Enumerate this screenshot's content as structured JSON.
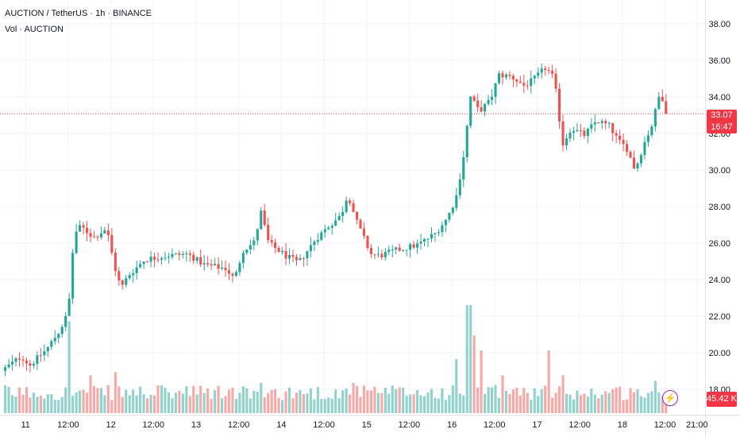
{
  "header": {
    "title": "AUCTION / TetherUS · 1h · BINANCE",
    "volume_label": "Vol · AUCTION"
  },
  "price_tag": {
    "price": "33.07",
    "countdown": "16:47"
  },
  "volume_tag": "45.42 K",
  "colors": {
    "up": "#26a69a",
    "down": "#ef5350",
    "vol_up": "#92d2cc",
    "vol_down": "#f7a9a7",
    "grid": "#f0f3fa"
  },
  "chart_data": {
    "type": "candlestick",
    "title": "AUCTION / TetherUS · 1h · BINANCE",
    "y_ticks": [
      "18.00",
      "20.00",
      "22.00",
      "24.00",
      "26.00",
      "28.00",
      "30.00",
      "32.00",
      "34.00",
      "36.00",
      "38.00"
    ],
    "ylim": [
      16.6,
      39.3
    ],
    "x_ticks": [
      {
        "label": "11",
        "day": 11.0
      },
      {
        "label": "12:00",
        "day": 11.5
      },
      {
        "label": "12",
        "day": 12.0
      },
      {
        "label": "12:00",
        "day": 12.5
      },
      {
        "label": "13",
        "day": 13.0
      },
      {
        "label": "12:00",
        "day": 13.5
      },
      {
        "label": "14",
        "day": 14.0
      },
      {
        "label": "12:00",
        "day": 14.5
      },
      {
        "label": "15",
        "day": 15.0
      },
      {
        "label": "12:00",
        "day": 15.5
      },
      {
        "label": "16",
        "day": 16.0
      },
      {
        "label": "12:00",
        "day": 16.5
      },
      {
        "label": "17",
        "day": 17.0
      },
      {
        "label": "12:00",
        "day": 17.5
      },
      {
        "label": "18",
        "day": 18.0
      },
      {
        "label": "12:00",
        "day": 18.5
      },
      {
        "label": "21:00",
        "day": 18.875
      }
    ],
    "xlim_days": [
      10.7,
      18.97
    ],
    "last_price": 33.07,
    "anchors": [
      {
        "day": 10.72,
        "price": 19.0
      },
      {
        "day": 10.95,
        "price": 19.8
      },
      {
        "day": 11.05,
        "price": 19.3
      },
      {
        "day": 11.25,
        "price": 20.2
      },
      {
        "day": 11.4,
        "price": 21.2
      },
      {
        "day": 11.5,
        "price": 22.2
      },
      {
        "day": 11.57,
        "price": 26.5
      },
      {
        "day": 11.65,
        "price": 26.9
      },
      {
        "day": 11.8,
        "price": 26.3
      },
      {
        "day": 11.95,
        "price": 26.8
      },
      {
        "day": 12.05,
        "price": 24.6
      },
      {
        "day": 12.12,
        "price": 23.5
      },
      {
        "day": 12.2,
        "price": 24.2
      },
      {
        "day": 12.4,
        "price": 25.1
      },
      {
        "day": 12.65,
        "price": 25.3
      },
      {
        "day": 12.9,
        "price": 25.4
      },
      {
        "day": 13.1,
        "price": 24.8
      },
      {
        "day": 13.35,
        "price": 24.6
      },
      {
        "day": 13.45,
        "price": 24.0
      },
      {
        "day": 13.55,
        "price": 25.6
      },
      {
        "day": 13.7,
        "price": 26.1
      },
      {
        "day": 13.75,
        "price": 27.9
      },
      {
        "day": 13.85,
        "price": 26.0
      },
      {
        "day": 14.05,
        "price": 25.3
      },
      {
        "day": 14.2,
        "price": 24.9
      },
      {
        "day": 14.4,
        "price": 26.2
      },
      {
        "day": 14.55,
        "price": 26.9
      },
      {
        "day": 14.7,
        "price": 27.5
      },
      {
        "day": 14.78,
        "price": 28.7
      },
      {
        "day": 14.88,
        "price": 27.2
      },
      {
        "day": 15.05,
        "price": 25.4
      },
      {
        "day": 15.15,
        "price": 25.3
      },
      {
        "day": 15.35,
        "price": 25.6
      },
      {
        "day": 15.6,
        "price": 25.9
      },
      {
        "day": 15.8,
        "price": 26.5
      },
      {
        "day": 15.95,
        "price": 27.4
      },
      {
        "day": 16.05,
        "price": 28.5
      },
      {
        "day": 16.13,
        "price": 30.5
      },
      {
        "day": 16.22,
        "price": 34.0
      },
      {
        "day": 16.32,
        "price": 33.2
      },
      {
        "day": 16.45,
        "price": 33.8
      },
      {
        "day": 16.55,
        "price": 35.2
      },
      {
        "day": 16.7,
        "price": 35.1
      },
      {
        "day": 16.85,
        "price": 34.6
      },
      {
        "day": 16.95,
        "price": 34.9
      },
      {
        "day": 17.1,
        "price": 35.6
      },
      {
        "day": 17.2,
        "price": 35.0
      },
      {
        "day": 17.3,
        "price": 31.4
      },
      {
        "day": 17.4,
        "price": 32.3
      },
      {
        "day": 17.55,
        "price": 31.9
      },
      {
        "day": 17.7,
        "price": 32.7
      },
      {
        "day": 17.85,
        "price": 32.4
      },
      {
        "day": 17.95,
        "price": 31.6
      },
      {
        "day": 18.05,
        "price": 31.2
      },
      {
        "day": 18.15,
        "price": 30.0
      },
      {
        "day": 18.25,
        "price": 31.4
      },
      {
        "day": 18.35,
        "price": 32.5
      },
      {
        "day": 18.45,
        "price": 34.4
      },
      {
        "day": 18.5,
        "price": 33.2
      },
      {
        "day": 18.53,
        "price": 33.07
      }
    ],
    "volume_peaks": [
      {
        "day": 11.5,
        "level": 0.85
      },
      {
        "day": 11.52,
        "level": 0.62
      },
      {
        "day": 11.75,
        "level": 0.35
      },
      {
        "day": 12.05,
        "level": 0.38
      },
      {
        "day": 13.75,
        "level": 0.28
      },
      {
        "day": 14.85,
        "level": 0.28
      },
      {
        "day": 16.05,
        "level": 0.5
      },
      {
        "day": 16.2,
        "level": 1.0
      },
      {
        "day": 16.25,
        "level": 0.72
      },
      {
        "day": 16.35,
        "level": 0.58
      },
      {
        "day": 16.6,
        "level": 0.35
      },
      {
        "day": 17.15,
        "level": 0.58
      },
      {
        "day": 17.3,
        "level": 0.35
      },
      {
        "day": 18.4,
        "level": 0.3
      }
    ]
  }
}
